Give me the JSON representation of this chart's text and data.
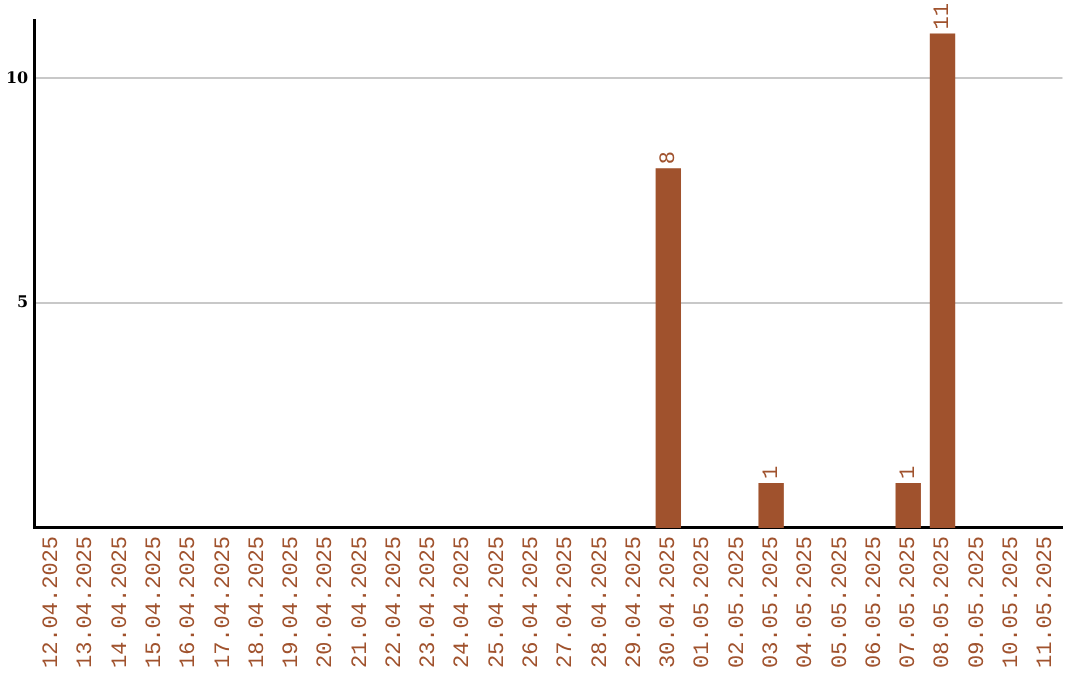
{
  "chart_data": {
    "type": "bar",
    "categories": [
      "12.04.2025",
      "13.04.2025",
      "14.04.2025",
      "15.04.2025",
      "16.04.2025",
      "17.04.2025",
      "18.04.2025",
      "19.04.2025",
      "20.04.2025",
      "21.04.2025",
      "22.04.2025",
      "23.04.2025",
      "24.04.2025",
      "25.04.2025",
      "26.04.2025",
      "27.04.2025",
      "28.04.2025",
      "29.04.2025",
      "30.04.2025",
      "01.05.2025",
      "02.05.2025",
      "03.05.2025",
      "04.05.2025",
      "05.05.2025",
      "06.05.2025",
      "07.05.2025",
      "08.05.2025",
      "09.05.2025",
      "10.05.2025",
      "11.05.2025"
    ],
    "values": [
      0,
      0,
      0,
      0,
      0,
      0,
      0,
      0,
      0,
      0,
      0,
      0,
      0,
      0,
      0,
      0,
      0,
      0,
      8,
      0,
      0,
      1,
      0,
      0,
      0,
      1,
      11,
      0,
      0,
      0
    ],
    "value_labels": [
      null,
      null,
      null,
      null,
      null,
      null,
      null,
      null,
      null,
      null,
      null,
      null,
      null,
      null,
      null,
      null,
      null,
      null,
      "8",
      null,
      null,
      "1",
      null,
      null,
      null,
      "1",
      "11",
      null,
      null,
      null
    ],
    "color": "#a0522d",
    "ylim": [
      0,
      11.3
    ],
    "yticks": [
      5,
      10
    ],
    "grid": "y",
    "legend": false
  }
}
